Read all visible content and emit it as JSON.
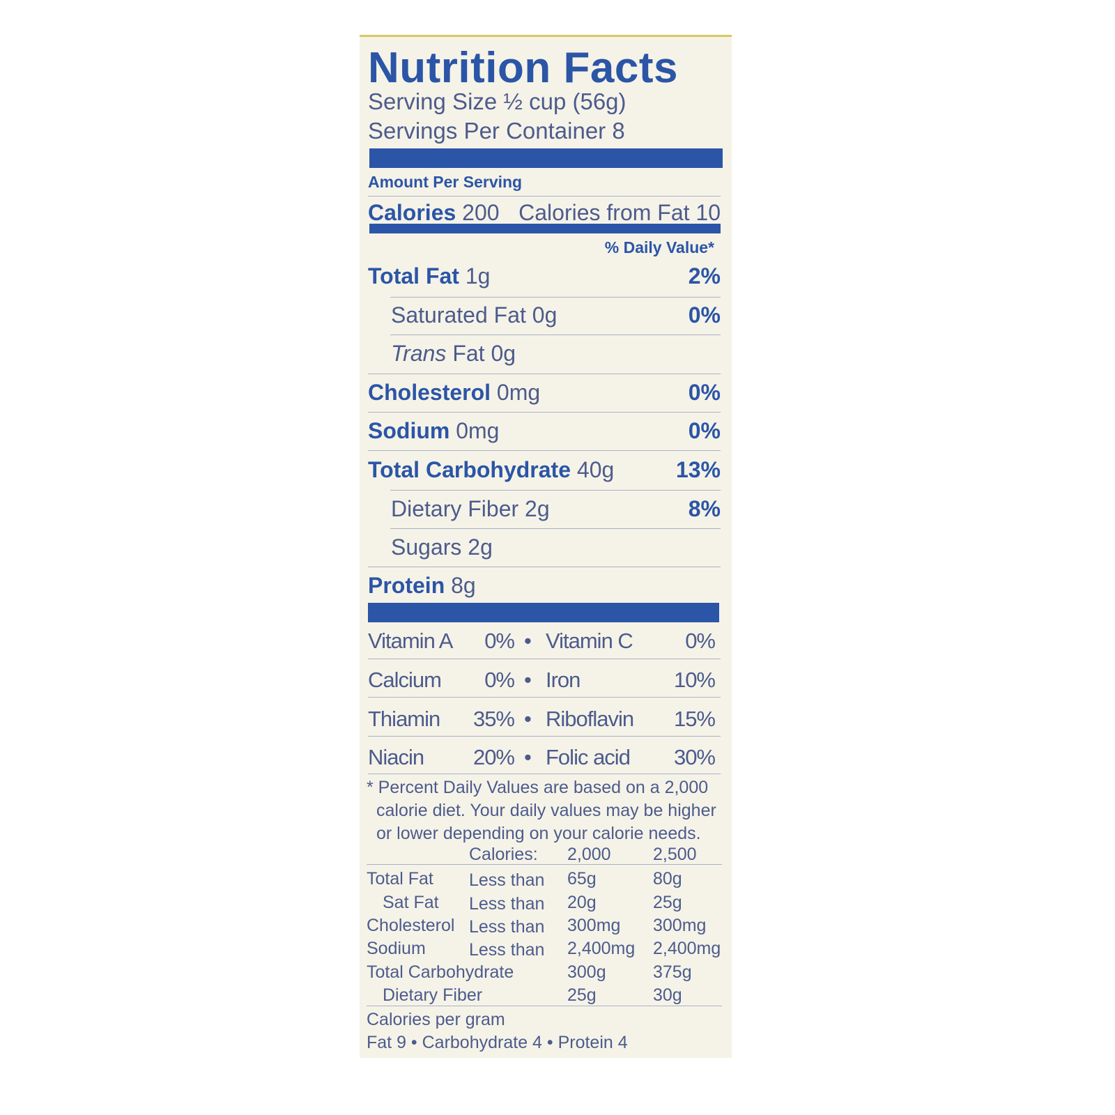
{
  "title": "Nutrition Facts",
  "serving_size": "Serving Size ½ cup (56g)",
  "servings_per_container": "Servings Per Container  8",
  "amount_per_serving": "Amount Per Serving",
  "calories": {
    "label": "Calories",
    "value": "200",
    "from_fat": "Calories from Fat 10"
  },
  "daily_value_header": "% Daily Value*",
  "nutrients": [
    {
      "name": "Total Fat",
      "amount": "1g",
      "pct": "2%",
      "bold": true
    },
    {
      "name": "Saturated Fat",
      "amount": "0g",
      "pct": "0%",
      "bold": false
    },
    {
      "name": "Trans",
      "name_rest": "Fat",
      "amount": "0g",
      "pct": "",
      "bold": false
    },
    {
      "name": "Cholesterol",
      "amount": "0mg",
      "pct": "0%",
      "bold": true
    },
    {
      "name": "Sodium",
      "amount": "0mg",
      "pct": "0%",
      "bold": true
    },
    {
      "name": "Total Carbohydrate",
      "amount": "40g",
      "pct": "13%",
      "bold": true
    },
    {
      "name": "Dietary Fiber",
      "amount": "2g",
      "pct": "8%",
      "bold": false
    },
    {
      "name": "Sugars",
      "amount": "2g",
      "pct": "",
      "bold": false
    },
    {
      "name": "Protein",
      "amount": "8g",
      "pct": "",
      "bold": true
    }
  ],
  "vitamins": [
    {
      "a": "Vitamin A",
      "a_pct": "0%",
      "b": "Vitamin C",
      "b_pct": "0%"
    },
    {
      "a": "Calcium",
      "a_pct": "0%",
      "b": "Iron",
      "b_pct": "10%"
    },
    {
      "a": "Thiamin",
      "a_pct": "35%",
      "b": "Riboflavin",
      "b_pct": "15%"
    },
    {
      "a": "Niacin",
      "a_pct": "20%",
      "b": "Folic acid",
      "b_pct": "30%"
    }
  ],
  "bullet": "•",
  "footnote": [
    "* Percent Daily Values are based on a 2,000",
    "calorie diet. Your daily values may be higher",
    "or lower depending on your calorie needs."
  ],
  "dv_table": {
    "header": [
      "Calories:",
      "2,000",
      "2,500"
    ],
    "rows": [
      [
        "Total Fat",
        "Less than",
        "65g",
        "80g"
      ],
      [
        "Sat Fat",
        "Less than",
        "20g",
        "25g"
      ],
      [
        "Cholesterol",
        "Less than",
        "300mg",
        "300mg"
      ],
      [
        "Sodium",
        "Less than",
        "2,400mg",
        "2,400mg"
      ],
      [
        "Total Carbohydrate",
        "",
        "300g",
        "375g"
      ],
      [
        "Dietary Fiber",
        "",
        "25g",
        "30g"
      ]
    ]
  },
  "calories_per_gram": "Calories per gram",
  "calories_per_gram_values": "Fat 9 • Carbohydrate 4 • Protein 4",
  "colors": {
    "primary_blue": "#2b55a6",
    "text_blue_gray": "#4d5b8c",
    "background": "#f5f3e8"
  }
}
